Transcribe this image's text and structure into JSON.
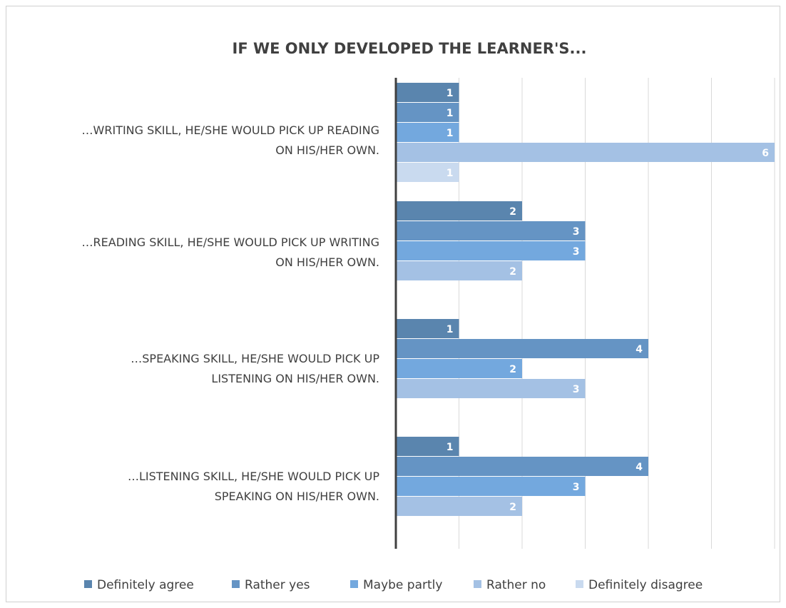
{
  "chart_data": {
    "type": "bar",
    "orientation": "horizontal",
    "title": "IF WE ONLY DEVELOPED THE LEARNER'S...",
    "categories": [
      [
        "…WRITING SKILL, HE/SHE WOULD PICK UP READING",
        "ON HIS/HER OWN."
      ],
      [
        "…READING SKILL, HE/SHE WOULD PICK UP WRITING",
        "ON HIS/HER OWN."
      ],
      [
        "…SPEAKING SKILL, HE/SHE WOULD PICK UP",
        "LISTENING ON HIS/HER OWN."
      ],
      [
        "…LISTENING SKILL, HE/SHE WOULD PICK UP",
        "SPEAKING ON HIS/HER OWN."
      ]
    ],
    "series": [
      {
        "name": "Definitely agree",
        "color": "#5a85ae",
        "values": [
          1,
          2,
          1,
          1
        ]
      },
      {
        "name": "Rather yes",
        "color": "#6594c4",
        "values": [
          1,
          3,
          4,
          4
        ]
      },
      {
        "name": "Maybe partly",
        "color": "#73a8de",
        "values": [
          1,
          3,
          2,
          3
        ]
      },
      {
        "name": "Rather no",
        "color": "#a4c1e4",
        "values": [
          6,
          2,
          3,
          2
        ]
      },
      {
        "name": "Definitely disagree",
        "color": "#c9daef",
        "values": [
          1,
          null,
          null,
          null
        ]
      }
    ],
    "xlim": [
      0,
      6
    ],
    "grid": true,
    "legend": "bottom"
  }
}
